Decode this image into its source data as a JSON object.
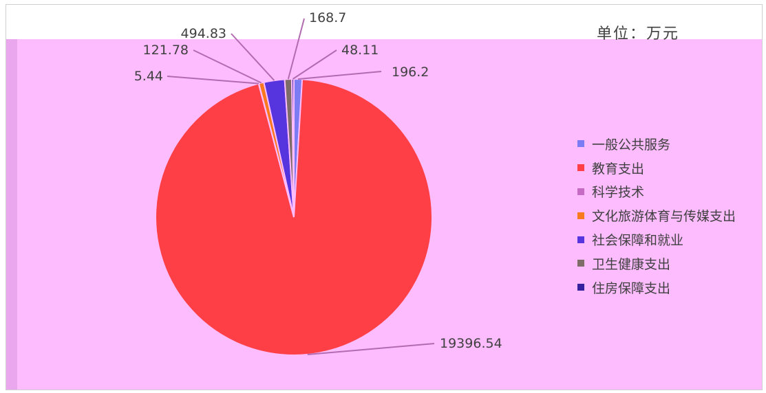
{
  "chart_data": {
    "type": "pie",
    "unit_label": "单位：万元",
    "categories": [
      "一般公共服务",
      "教育支出",
      "科学技术",
      "文化旅游体育与传媒支出",
      "社会保障和就业",
      "卫生健康支出",
      "住房保障支出"
    ],
    "values": [
      196.2,
      19396.54,
      5.44,
      121.78,
      494.83,
      168.7,
      48.11
    ],
    "data_labels": [
      "196.2",
      "19396.54",
      "5.44",
      "121.78",
      "494.83",
      "168.7",
      "48.11"
    ],
    "colors": [
      "#7b7cf4",
      "#fe3f45",
      "#c66bc3",
      "#f97a1c",
      "#5634de",
      "#7e6c69",
      "#35209f"
    ],
    "legend_position": "right"
  }
}
